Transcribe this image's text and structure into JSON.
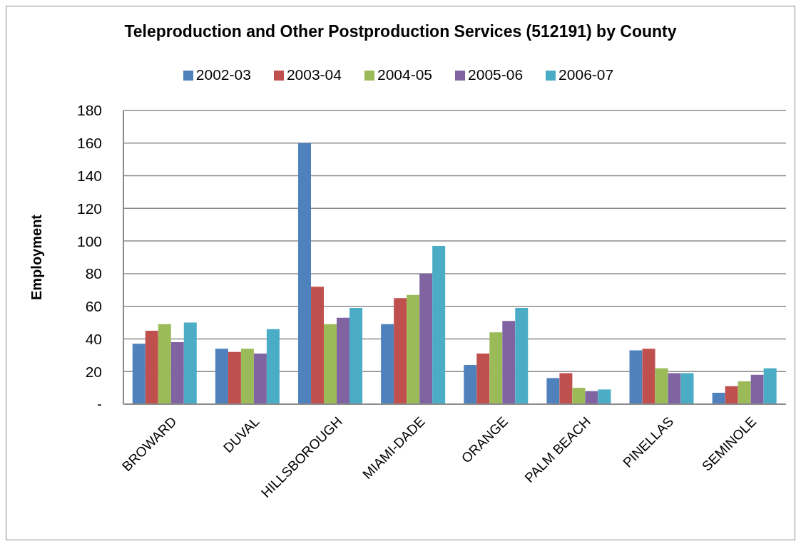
{
  "chart_data": {
    "type": "bar",
    "title": "Teleproduction and Other Postproduction Services (512191) by County",
    "ylabel": "Employment",
    "categories": [
      "BROWARD",
      "DUVAL",
      "HILLSBOROUGH",
      "MIAMI-DADE",
      "ORANGE",
      "PALM BEACH",
      "PINELLAS",
      "SEMINOLE"
    ],
    "series": [
      {
        "name": "2002-03",
        "color": "#4f81bd",
        "values": [
          37,
          34,
          160,
          49,
          24,
          16,
          33,
          7
        ]
      },
      {
        "name": "2003-04",
        "color": "#c0504d",
        "values": [
          45,
          32,
          72,
          65,
          31,
          19,
          34,
          11
        ]
      },
      {
        "name": "2004-05",
        "color": "#9bbb59",
        "values": [
          49,
          34,
          49,
          67,
          44,
          10,
          22,
          14
        ]
      },
      {
        "name": "2005-06",
        "color": "#8064a2",
        "values": [
          38,
          31,
          53,
          80,
          51,
          8,
          19,
          18
        ]
      },
      {
        "name": "2006-07",
        "color": "#4bacc6",
        "values": [
          50,
          46,
          59,
          97,
          59,
          9,
          19,
          22
        ]
      }
    ],
    "ylim": [
      0,
      180
    ],
    "yticks": [
      {
        "value": 0,
        "label": "-"
      },
      20,
      40,
      60,
      80,
      100,
      120,
      140,
      160,
      180
    ],
    "grid": "y",
    "legend": "top"
  }
}
